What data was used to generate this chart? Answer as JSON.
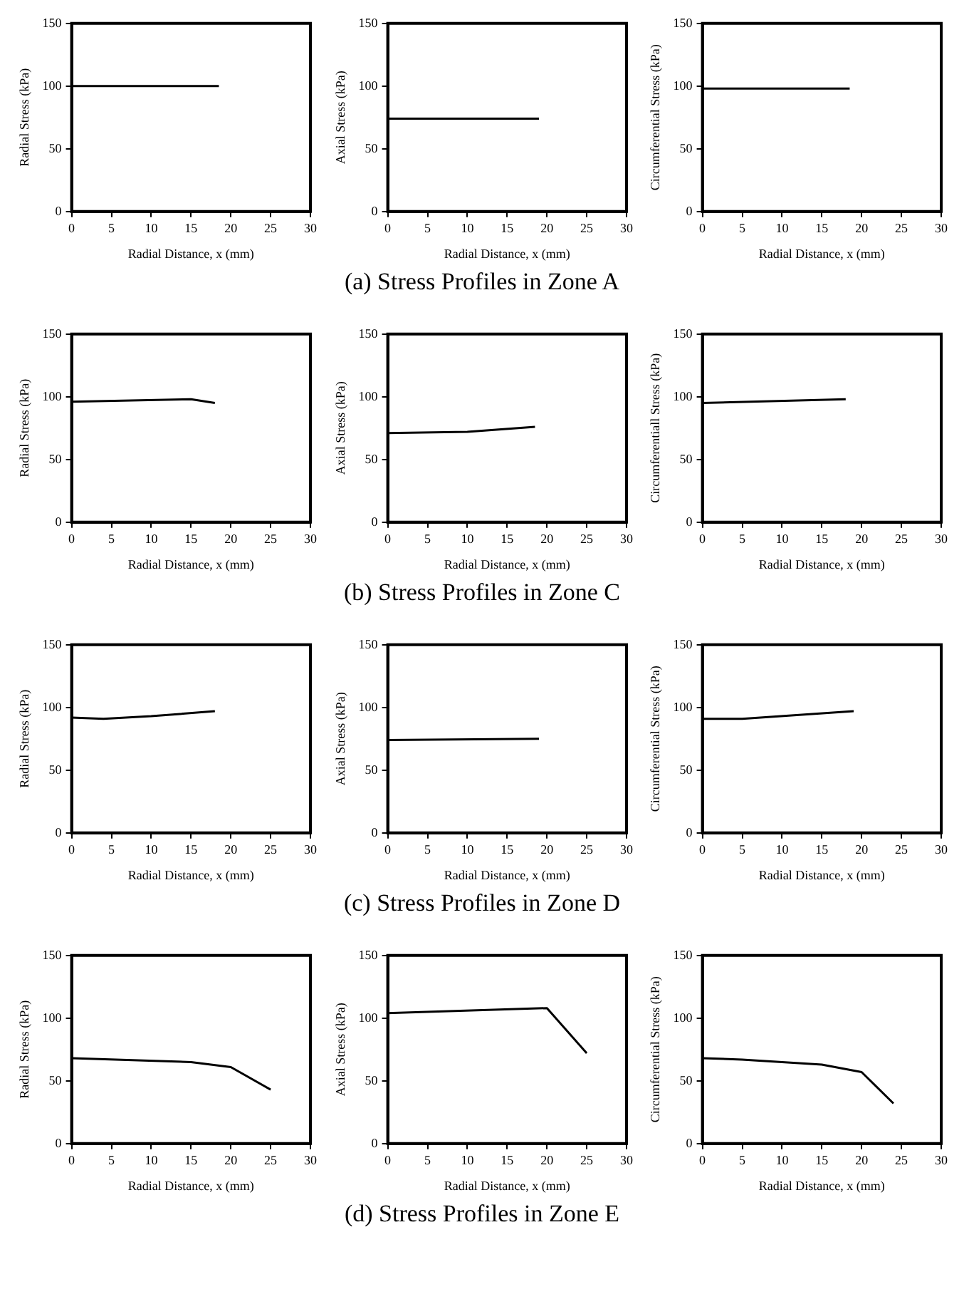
{
  "chart_data": [
    {
      "type": "line",
      "xlabel": "Radial Distance, x (mm)",
      "ylabel": "Radial Stress (kPa)",
      "xlim": [
        0,
        30
      ],
      "xticks": [
        0,
        5,
        10,
        15,
        20,
        25,
        30
      ],
      "ylim": [
        0,
        150
      ],
      "yticks": [
        0,
        50,
        100,
        150
      ],
      "grid": false,
      "legend": false,
      "marker": "none",
      "series": [
        {
          "color": "#000000",
          "x": [
            0,
            18.5
          ],
          "values": [
            100,
            100
          ]
        }
      ]
    },
    {
      "type": "line",
      "xlabel": "Radial Distance, x (mm)",
      "ylabel": "Axial Stress (kPa)",
      "xlim": [
        0,
        30
      ],
      "xticks": [
        0,
        5,
        10,
        15,
        20,
        25,
        30
      ],
      "ylim": [
        0,
        150
      ],
      "yticks": [
        0,
        50,
        100,
        150
      ],
      "grid": false,
      "legend": false,
      "marker": "none",
      "annotations": [
        "(a)  Stress Profiles in Zone A"
      ],
      "series": [
        {
          "color": "#000000",
          "x": [
            0,
            19
          ],
          "values": [
            74,
            74
          ]
        }
      ]
    },
    {
      "type": "line",
      "xlabel": "Radial Distance, x (mm)",
      "ylabel": "Circumferential Stress (kPa)",
      "xlim": [
        0,
        30
      ],
      "xticks": [
        0,
        5,
        10,
        15,
        20,
        25,
        30
      ],
      "ylim": [
        0,
        150
      ],
      "yticks": [
        0,
        50,
        100,
        150
      ],
      "grid": false,
      "legend": false,
      "marker": "none",
      "series": [
        {
          "color": "#000000",
          "x": [
            0,
            18.5
          ],
          "values": [
            98,
            98
          ]
        }
      ]
    },
    {
      "type": "line",
      "xlabel": "Radial Distance, x (mm)",
      "ylabel": "Radial Stress (kPa)",
      "xlim": [
        0,
        30
      ],
      "xticks": [
        0,
        5,
        10,
        15,
        20,
        25,
        30
      ],
      "ylim": [
        0,
        150
      ],
      "yticks": [
        0,
        50,
        100,
        150
      ],
      "grid": false,
      "legend": false,
      "marker": "none",
      "series": [
        {
          "color": "#000000",
          "x": [
            0,
            15,
            18
          ],
          "values": [
            96,
            98,
            95
          ]
        }
      ]
    },
    {
      "type": "line",
      "xlabel": "Radial Distance, x (mm)",
      "ylabel": "Axial Stress (kPa)",
      "xlim": [
        0,
        30
      ],
      "xticks": [
        0,
        5,
        10,
        15,
        20,
        25,
        30
      ],
      "ylim": [
        0,
        150
      ],
      "yticks": [
        0,
        50,
        100,
        150
      ],
      "grid": false,
      "legend": false,
      "marker": "none",
      "annotations": [
        "(b)  Stress Profiles in Zone C"
      ],
      "series": [
        {
          "color": "#000000",
          "x": [
            0,
            10,
            18.5
          ],
          "values": [
            71,
            72,
            76
          ]
        }
      ]
    },
    {
      "type": "line",
      "xlabel": "Radial Distance, x (mm)",
      "ylabel": "Circumferentiall Stress (kPa)",
      "xlim": [
        0,
        30
      ],
      "xticks": [
        0,
        5,
        10,
        15,
        20,
        25,
        30
      ],
      "ylim": [
        0,
        150
      ],
      "yticks": [
        0,
        50,
        100,
        150
      ],
      "grid": false,
      "legend": false,
      "marker": "none",
      "series": [
        {
          "color": "#000000",
          "x": [
            0,
            18
          ],
          "values": [
            95,
            98
          ]
        }
      ]
    },
    {
      "type": "line",
      "xlabel": "Radial Distance, x (mm)",
      "ylabel": "Radial Stress (kPa)",
      "xlim": [
        0,
        30
      ],
      "xticks": [
        0,
        5,
        10,
        15,
        20,
        25,
        30
      ],
      "ylim": [
        0,
        150
      ],
      "yticks": [
        0,
        50,
        100,
        150
      ],
      "grid": false,
      "legend": false,
      "marker": "none",
      "series": [
        {
          "color": "#000000",
          "x": [
            0,
            4,
            10,
            18
          ],
          "values": [
            92,
            91,
            93,
            97
          ]
        }
      ]
    },
    {
      "type": "line",
      "xlabel": "Radial Distance, x (mm)",
      "ylabel": "Axial Stress (kPa)",
      "xlim": [
        0,
        30
      ],
      "xticks": [
        0,
        5,
        10,
        15,
        20,
        25,
        30
      ],
      "ylim": [
        0,
        150
      ],
      "yticks": [
        0,
        50,
        100,
        150
      ],
      "grid": false,
      "legend": false,
      "marker": "none",
      "annotations": [
        "(c)  Stress Profiles in Zone D"
      ],
      "series": [
        {
          "color": "#000000",
          "x": [
            0,
            19
          ],
          "values": [
            74,
            75
          ]
        }
      ]
    },
    {
      "type": "line",
      "xlabel": "Radial Distance, x (mm)",
      "ylabel": "Circumferential Stress (kPa)",
      "xlim": [
        0,
        30
      ],
      "xticks": [
        0,
        5,
        10,
        15,
        20,
        25,
        30
      ],
      "ylim": [
        0,
        150
      ],
      "yticks": [
        0,
        50,
        100,
        150
      ],
      "grid": false,
      "legend": false,
      "marker": "none",
      "series": [
        {
          "color": "#000000",
          "x": [
            0,
            5,
            19
          ],
          "values": [
            91,
            91,
            97
          ]
        }
      ]
    },
    {
      "type": "line",
      "xlabel": "Radial Distance, x (mm)",
      "ylabel": "Radial Stress (kPa)",
      "xlim": [
        0,
        30
      ],
      "xticks": [
        0,
        5,
        10,
        15,
        20,
        25,
        30
      ],
      "ylim": [
        0,
        150
      ],
      "yticks": [
        0,
        50,
        100,
        150
      ],
      "grid": false,
      "legend": false,
      "marker": "none",
      "series": [
        {
          "color": "#000000",
          "x": [
            0,
            15,
            20,
            25
          ],
          "values": [
            68,
            65,
            61,
            43
          ]
        }
      ]
    },
    {
      "type": "line",
      "xlabel": "Radial Distance, x (mm)",
      "ylabel": "Axial Stress (kPa)",
      "xlim": [
        0,
        30
      ],
      "xticks": [
        0,
        5,
        10,
        15,
        20,
        25,
        30
      ],
      "ylim": [
        0,
        150
      ],
      "yticks": [
        0,
        50,
        100,
        150
      ],
      "grid": false,
      "legend": false,
      "marker": "none",
      "annotations": [
        "(d)  Stress Profiles in Zone E"
      ],
      "series": [
        {
          "color": "#000000",
          "x": [
            0,
            20,
            25
          ],
          "values": [
            104,
            108,
            72
          ]
        }
      ]
    },
    {
      "type": "line",
      "xlabel": "Radial Distance, x (mm)",
      "ylabel": "Circumferential Stress (kPa)",
      "xlim": [
        0,
        30
      ],
      "xticks": [
        0,
        5,
        10,
        15,
        20,
        25,
        30
      ],
      "ylim": [
        0,
        150
      ],
      "yticks": [
        0,
        50,
        100,
        150
      ],
      "grid": false,
      "legend": false,
      "marker": "none",
      "series": [
        {
          "color": "#000000",
          "x": [
            0,
            5,
            15,
            20,
            24
          ],
          "values": [
            68,
            67,
            63,
            57,
            32
          ]
        }
      ]
    }
  ]
}
